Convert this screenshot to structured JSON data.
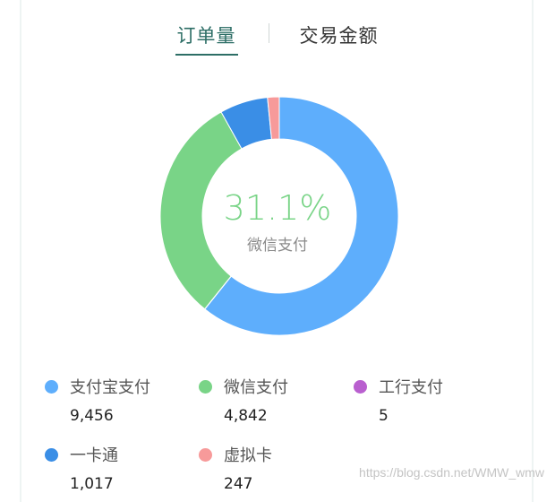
{
  "tabs": [
    {
      "label": "订单量",
      "active": true
    },
    {
      "label": "交易金额",
      "active": false
    }
  ],
  "center": {
    "percent": "31.1%",
    "label": "微信支付"
  },
  "watermark": "https://blog.csdn.net/WMW_wmw",
  "colors": {
    "alipay": "#5eaefc",
    "wechat": "#79d487",
    "icbc": "#b95fcf",
    "card": "#3a8ee6",
    "virtual": "#f79a9a",
    "accent": "#2d6e66"
  },
  "chart_data": {
    "type": "pie",
    "categories": [
      "支付宝支付",
      "微信支付",
      "工行支付",
      "一卡通",
      "虚拟卡"
    ],
    "values": [
      9456,
      4842,
      5,
      1017,
      247
    ],
    "value_labels": [
      "9,456",
      "4,842",
      "5",
      "1,017",
      "247"
    ],
    "highlight": {
      "category": "微信支付",
      "percent": "31.1%"
    },
    "legend": "bottom"
  }
}
